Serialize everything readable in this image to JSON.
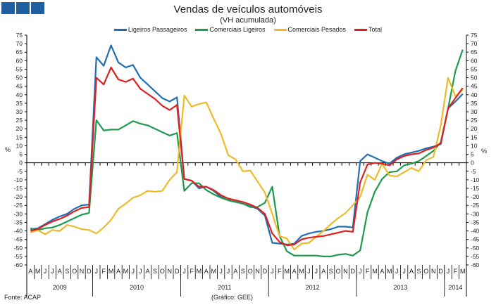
{
  "source": "Fonte: ACAP",
  "credit": "(Gráfico: GEE)",
  "chart_data": {
    "type": "line",
    "title": "Vendas de veículos automóveis",
    "subtitle": "(VH acumulada)",
    "ylabel": "%",
    "ylabel_right": "%",
    "ylim": [
      -60,
      75
    ],
    "ytick_step": 5,
    "grid": false,
    "legend_position": "top-center",
    "months": [
      "A",
      "M",
      "J",
      "J",
      "A",
      "S",
      "O",
      "N",
      "D",
      "J",
      "F",
      "M",
      "A",
      "M",
      "J",
      "J",
      "A",
      "S",
      "O",
      "N",
      "D",
      "J",
      "F",
      "M",
      "A",
      "M",
      "J",
      "J",
      "A",
      "S",
      "O",
      "N",
      "D",
      "J",
      "F",
      "M",
      "A",
      "M",
      "J",
      "J",
      "A",
      "S",
      "O",
      "N",
      "D",
      "J",
      "F",
      "M",
      "A",
      "M",
      "J",
      "J",
      "A",
      "S",
      "O",
      "N",
      "D",
      "J",
      "F",
      "M"
    ],
    "years": [
      {
        "label": "2009",
        "months": 9
      },
      {
        "label": "2010",
        "months": 12
      },
      {
        "label": "2011",
        "months": 12
      },
      {
        "label": "2012",
        "months": 12
      },
      {
        "label": "2013",
        "months": 12
      },
      {
        "label": "2014",
        "months": 3
      }
    ],
    "series": [
      {
        "name": "Ligeiros Passageiros",
        "color": "#1f6fb2",
        "values": [
          -39,
          -38.5,
          -36,
          -33.5,
          -31.5,
          -30,
          -27,
          -25,
          -24.5,
          62,
          57,
          69,
          59,
          56,
          57.5,
          50,
          46,
          42,
          38,
          36,
          38.5,
          -9.5,
          -10.5,
          -15,
          -14,
          -16.5,
          -20,
          -22,
          -23,
          -24,
          -25.5,
          -27,
          -31,
          -47,
          -47.5,
          -48,
          -47.5,
          -43,
          -41.5,
          -40.5,
          -40,
          -39,
          -37.5,
          -37.5,
          -38,
          1,
          5,
          3,
          1,
          -0.5,
          3,
          5,
          6,
          7,
          8.5,
          9.5,
          11,
          32,
          36,
          40.5
        ]
      },
      {
        "name": "Comerciais Ligeiros",
        "color": "#1e9a4e",
        "values": [
          -38.5,
          -39.5,
          -38.5,
          -38,
          -36.5,
          -34.5,
          -32.5,
          -30.5,
          -29.5,
          25,
          19,
          19.5,
          19.5,
          22,
          24.5,
          23,
          22,
          20,
          18,
          16,
          17.5,
          -16.5,
          -12,
          -12,
          -16,
          -18.5,
          -20.5,
          -22,
          -23,
          -24,
          -26,
          -26,
          -23.5,
          -14,
          -43,
          -52,
          -54.5,
          -54.5,
          -54.5,
          -54.5,
          -55,
          -55,
          -54,
          -53.5,
          -54.5,
          -51.5,
          -29,
          -17,
          -9.5,
          -5.5,
          -5,
          -1.5,
          -0.5,
          1,
          4,
          7,
          12,
          32,
          54,
          66.5
        ]
      },
      {
        "name": "Comerciais Pesados",
        "color": "#f0b92a",
        "values": [
          -41,
          -39.5,
          -42,
          -39.5,
          -40,
          -36.5,
          -37.5,
          -39,
          -39.5,
          -41.5,
          -38,
          -33.5,
          -27,
          -24,
          -20.5,
          -19,
          -16.5,
          -17,
          -16.5,
          -10,
          -5.5,
          39.5,
          33,
          34.5,
          35.5,
          26,
          17,
          4.5,
          2,
          -5,
          -4.5,
          -11,
          -17.5,
          -30,
          -43,
          -44.5,
          -51,
          -47.5,
          -47,
          -43.5,
          -40,
          -36,
          -32.5,
          -29.5,
          -25,
          -20,
          -7,
          -10,
          -0.5,
          -7.5,
          -8,
          -5.5,
          -3,
          -5,
          1.5,
          3.5,
          22,
          50,
          39,
          43
        ]
      },
      {
        "name": "Total",
        "color": "#e02020",
        "values": [
          -40,
          -39,
          -36.5,
          -34.5,
          -33,
          -31,
          -28.5,
          -26.5,
          -26,
          50,
          46,
          56,
          49,
          47.5,
          49.5,
          43.5,
          40.5,
          37.5,
          33.5,
          31,
          34,
          -9.5,
          -10.5,
          -14,
          -14,
          -16,
          -19,
          -21,
          -22,
          -23,
          -24.5,
          -26.5,
          -30,
          -41.5,
          -46.5,
          -48.5,
          -48,
          -45,
          -44,
          -43.5,
          -43,
          -42,
          -41,
          -40,
          -40.5,
          -11.5,
          -1,
          0,
          -0.5,
          -1.5,
          2,
          4,
          5,
          5.5,
          7.5,
          9,
          11.5,
          32,
          38,
          44
        ]
      }
    ]
  }
}
